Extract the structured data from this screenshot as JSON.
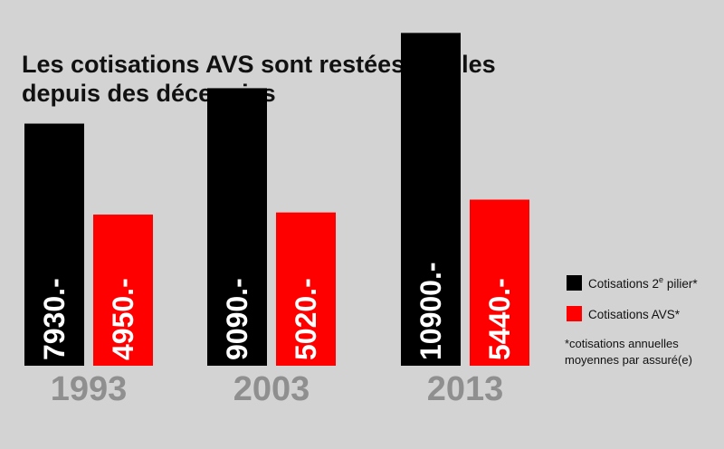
{
  "chart_data": {
    "type": "bar",
    "title_lines": [
      "Les cotisations AVS sont restées stables",
      "depuis des décennies"
    ],
    "categories": [
      "1993",
      "2003",
      "2013"
    ],
    "series": [
      {
        "name": "Cotisations 2e pilier*",
        "color": "#000000",
        "values": [
          7930,
          9090,
          10900
        ],
        "labels": [
          "7930.-",
          "9090.-",
          "10900.-"
        ]
      },
      {
        "name": "Cotisations AVS*",
        "color": "#ff0000",
        "values": [
          4950,
          5020,
          5440
        ],
        "labels": [
          "4950.-",
          "5020.-",
          "5440.-"
        ]
      }
    ],
    "legend": {
      "position": "right",
      "items": [
        {
          "main": "Cotisations 2",
          "sup": "e",
          "rest": " pilier*",
          "color": "#000000"
        },
        {
          "main": "Cotisations AVS*",
          "color": "#ff0000"
        }
      ]
    },
    "footnote": [
      "*cotisations annuelles",
      "moyennes par assuré(e)"
    ],
    "ylim": [
      0,
      11000
    ],
    "grid": false,
    "colors": {
      "background": "#d3d3d3",
      "category_label": "#8f8f8f",
      "bar_text": "#ffffff"
    }
  }
}
